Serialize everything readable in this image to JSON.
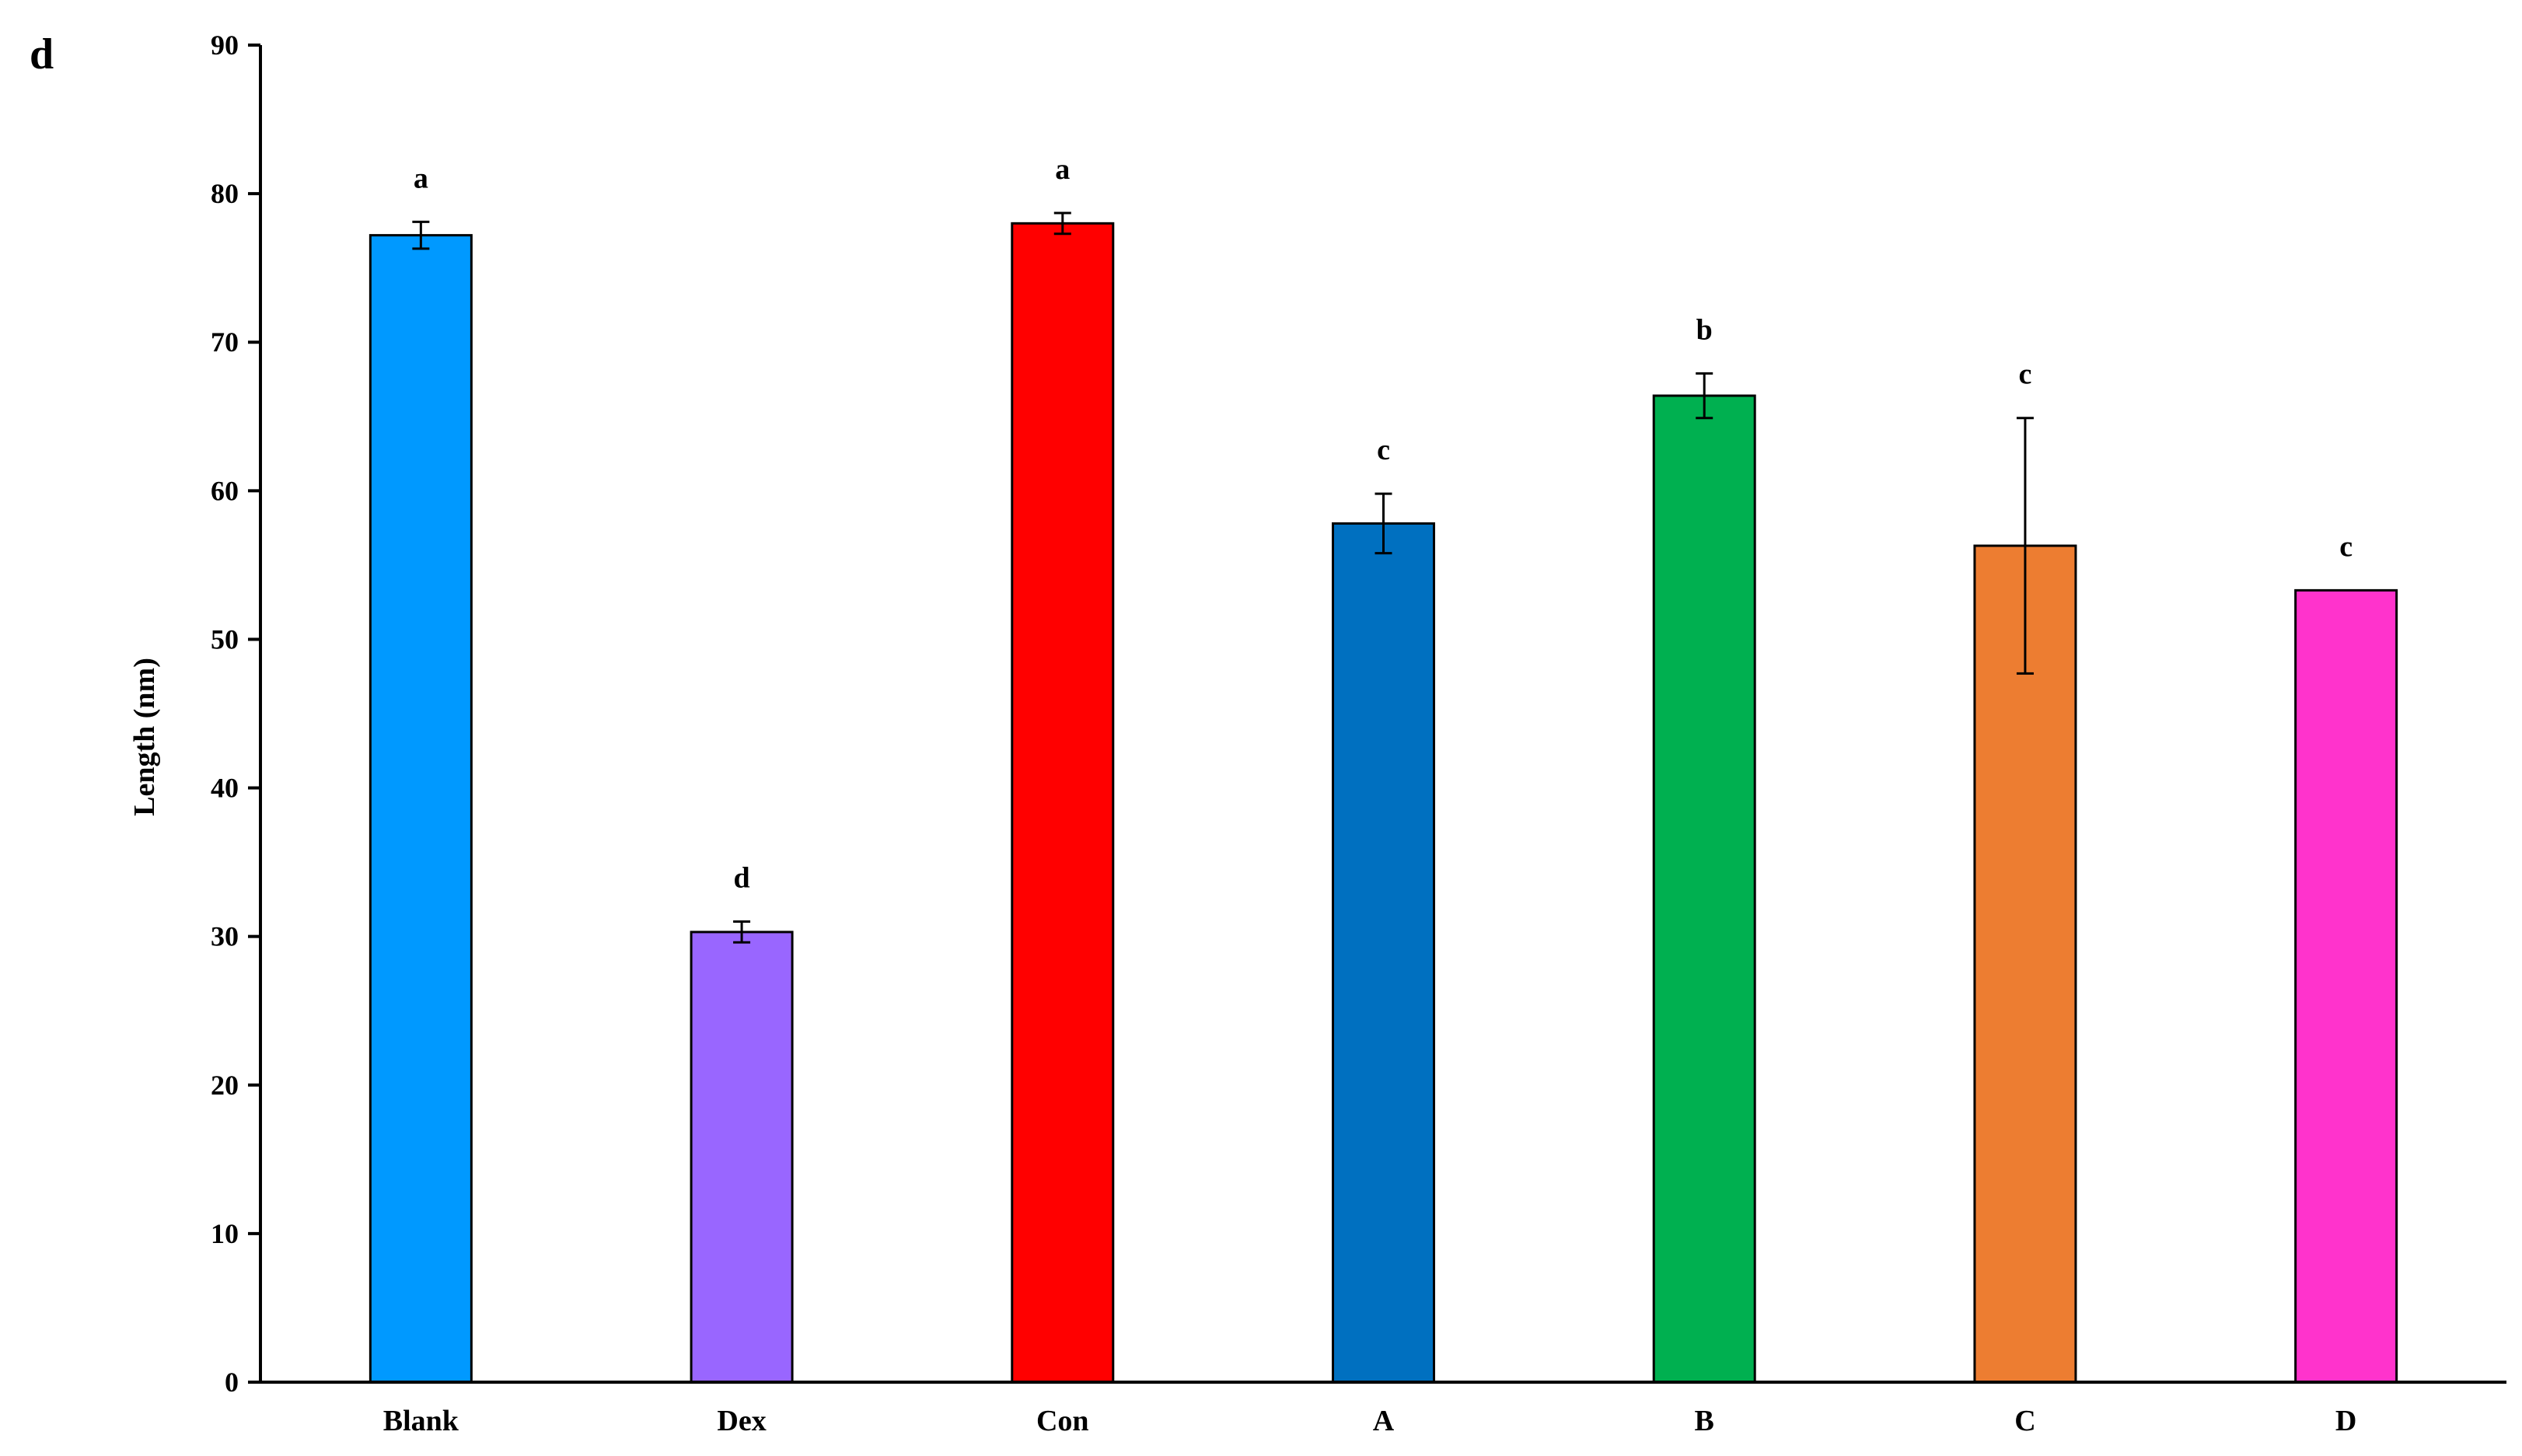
{
  "panel_label": "d",
  "chart_data": {
    "type": "bar",
    "title": "",
    "xlabel": "",
    "ylabel": "Length (nm)",
    "ylim": [
      0,
      90
    ],
    "yticks": [
      0,
      10,
      20,
      30,
      40,
      50,
      60,
      70,
      80,
      90
    ],
    "grid": false,
    "legend": "none",
    "categories": [
      "Blank",
      "Dex",
      "Con",
      "A",
      "B",
      "C",
      "D"
    ],
    "values": [
      77.2,
      30.3,
      78.0,
      57.8,
      66.4,
      56.3,
      53.3
    ],
    "errors": [
      0.9,
      0.7,
      0.7,
      2.0,
      1.5,
      8.6,
      0.0
    ],
    "significance": [
      "a",
      "d",
      "a",
      "c",
      "b",
      "c",
      "c"
    ],
    "colors": [
      "#0099FF",
      "#9966FF",
      "#FF0000",
      "#0070C0",
      "#00B050",
      "#ED7D31",
      "#FF33CC"
    ]
  }
}
